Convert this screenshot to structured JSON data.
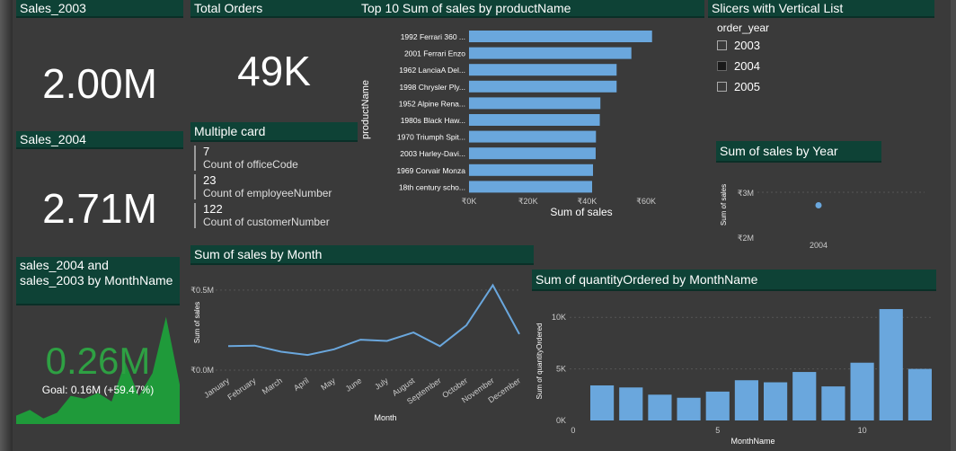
{
  "colors": {
    "header_bg": "#0e4236",
    "bar": "#6aa7dd",
    "line": "#6aa7dd",
    "kpi_green": "#2ea043",
    "area_green": "#1f9a3a"
  },
  "sales_2003": {
    "title": "Sales_2003",
    "value": "2.00M"
  },
  "total_orders": {
    "title": "Total Orders",
    "value": "49K"
  },
  "sales_2004": {
    "title": "Sales_2004",
    "value": "2.71M"
  },
  "multiple_card": {
    "title": "Multiple card",
    "items": [
      {
        "value": "7",
        "label": "Count of officeCode"
      },
      {
        "value": "23",
        "label": "Count of employeeNumber"
      },
      {
        "value": "122",
        "label": "Count of customerNumber"
      }
    ]
  },
  "top10": {
    "title": "Top 10 Sum of sales by productName"
  },
  "slicer": {
    "title": "Slicers with Vertical List",
    "field": "order_year",
    "options": [
      {
        "label": "2003",
        "checked": false
      },
      {
        "label": "2004",
        "checked": true
      },
      {
        "label": "2005",
        "checked": false
      }
    ]
  },
  "by_year": {
    "title": "Sum of sales by Year"
  },
  "kpi_card": {
    "title": "sales_2004 and sales_2003 by MonthName",
    "value": "0.26M",
    "goal": "Goal: 0.16M (+59.47%)"
  },
  "by_month": {
    "title": "Sum of sales by Month"
  },
  "qty_month": {
    "title": "Sum of quantityOrdered by MonthName"
  },
  "chart_data": [
    {
      "type": "bar",
      "orientation": "horizontal",
      "title": "Top 10 Sum of sales by productName",
      "xlabel": "Sum of sales",
      "ylabel": "productName",
      "categories": [
        "1992 Ferrari 360 ...",
        "2001 Ferrari Enzo",
        "1962 LanciaA Del...",
        "1998 Chrysler Ply...",
        "1952 Alpine Rena...",
        "1980s Black Haw...",
        "1970 Triumph Spit...",
        "2003 Harley-Davi...",
        "1969 Corvair Monza",
        "18th century scho..."
      ],
      "values": [
        62000,
        55000,
        50000,
        50000,
        44500,
        44300,
        43000,
        42900,
        42000,
        41700
      ],
      "xlim": [
        0,
        70000
      ],
      "xticks": [
        0,
        20000,
        40000,
        60000
      ],
      "xtick_labels": [
        "₹0K",
        "₹20K",
        "₹40K",
        "₹60K"
      ]
    },
    {
      "type": "scatter",
      "title": "Sum of sales by Year",
      "ylabel": "Sum of sales",
      "categories": [
        "2004"
      ],
      "values": [
        2710000
      ],
      "ylim": [
        2000000,
        3000000
      ],
      "yticks": [
        2000000,
        3000000
      ],
      "ytick_labels": [
        "₹2M",
        "₹3M"
      ]
    },
    {
      "type": "line",
      "title": "Sum of sales by Month",
      "xlabel": "Month",
      "ylabel": "Sum of sales",
      "categories": [
        "January",
        "February",
        "March",
        "April",
        "May",
        "June",
        "July",
        "August",
        "September",
        "October",
        "November",
        "December"
      ],
      "values": [
        150000,
        153000,
        115000,
        95000,
        130000,
        190000,
        182000,
        235000,
        150000,
        280000,
        530000,
        225000
      ],
      "ylim": [
        0,
        600000
      ],
      "yticks": [
        0,
        500000
      ],
      "ytick_labels": [
        "₹0.0M",
        "₹0.5M"
      ]
    },
    {
      "type": "bar",
      "title": "Sum of quantityOrdered by MonthName",
      "xlabel": "MonthName",
      "ylabel": "Sum of quantityOrdered",
      "categories": [
        1,
        2,
        3,
        4,
        5,
        6,
        7,
        8,
        9,
        10,
        11,
        12
      ],
      "values": [
        3400,
        3200,
        2500,
        2200,
        2800,
        3900,
        3700,
        4700,
        3300,
        5600,
        10800,
        5000
      ],
      "ylim": [
        0,
        11500
      ],
      "yticks": [
        0,
        5000,
        10000
      ],
      "ytick_labels": [
        "0K",
        "5K",
        "10K"
      ],
      "xticks": [
        0,
        5,
        10
      ],
      "xtick_labels": [
        "0",
        "5",
        "10"
      ]
    },
    {
      "type": "area",
      "title": "sales_2004 and sales_2003 by MonthName",
      "values": [
        0.03,
        0.05,
        0.02,
        0.04,
        0.1,
        0.09,
        0.11,
        0.08,
        0.22,
        0.1,
        0.18,
        0.38,
        0.14
      ]
    }
  ]
}
